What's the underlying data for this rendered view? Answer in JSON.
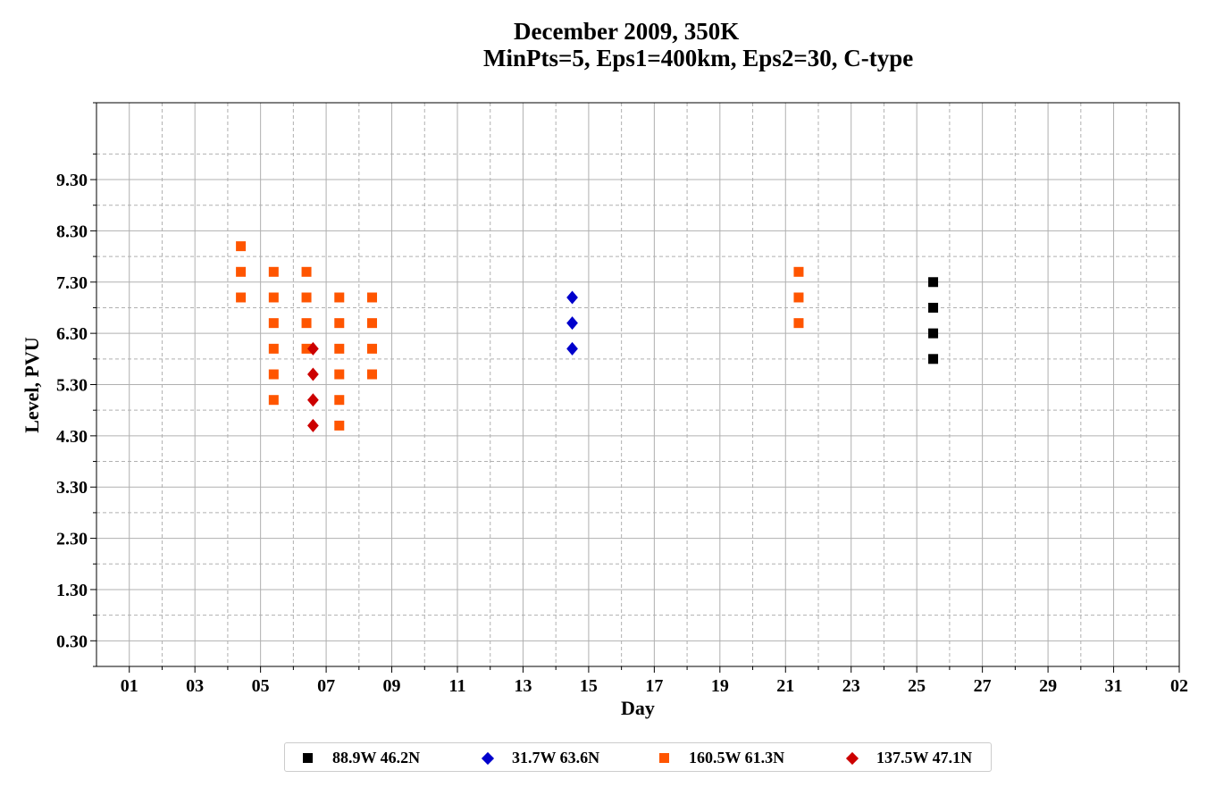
{
  "title": "December 2009, 350K",
  "subtitle": "MinPts=5, Eps1=400km, Eps2=30, C-type",
  "chart_data": {
    "type": "scatter",
    "xlabel": "Day",
    "ylabel": "Level, PVU",
    "x_ticks": [
      "01",
      "03",
      "05",
      "07",
      "09",
      "11",
      "13",
      "15",
      "17",
      "19",
      "21",
      "23",
      "25",
      "27",
      "29",
      "31",
      "02"
    ],
    "y_ticks": [
      "0.30",
      "1.30",
      "2.30",
      "3.30",
      "4.30",
      "5.30",
      "6.30",
      "7.30",
      "8.30",
      "9.30"
    ],
    "xlim": [
      0,
      33
    ],
    "ylim": [
      -0.2,
      10.8
    ],
    "grid": true,
    "legend_position": "bottom",
    "series": [
      {
        "name": "88.9W 46.2N",
        "marker": "square",
        "color": "#000000",
        "points": [
          [
            25.5,
            5.8
          ],
          [
            25.5,
            6.3
          ],
          [
            25.5,
            6.8
          ],
          [
            25.5,
            7.3
          ]
        ]
      },
      {
        "name": "31.7W 63.6N",
        "marker": "diamond",
        "color": "#0000cc",
        "points": [
          [
            14.5,
            6.0
          ],
          [
            14.5,
            6.5
          ],
          [
            14.5,
            7.0
          ]
        ]
      },
      {
        "name": "160.5W 61.3N",
        "marker": "square",
        "color": "#ff5500",
        "points": [
          [
            4.4,
            7.0
          ],
          [
            4.4,
            7.5
          ],
          [
            4.4,
            8.0
          ],
          [
            5.4,
            5.0
          ],
          [
            5.4,
            5.5
          ],
          [
            5.4,
            6.0
          ],
          [
            5.4,
            6.5
          ],
          [
            5.4,
            7.0
          ],
          [
            5.4,
            7.5
          ],
          [
            6.4,
            6.0
          ],
          [
            6.4,
            6.5
          ],
          [
            6.4,
            7.0
          ],
          [
            6.4,
            7.5
          ],
          [
            7.4,
            4.5
          ],
          [
            7.4,
            5.0
          ],
          [
            7.4,
            5.5
          ],
          [
            7.4,
            6.0
          ],
          [
            7.4,
            6.5
          ],
          [
            7.4,
            7.0
          ],
          [
            8.4,
            5.5
          ],
          [
            8.4,
            6.0
          ],
          [
            8.4,
            6.5
          ],
          [
            8.4,
            7.0
          ],
          [
            21.4,
            6.5
          ],
          [
            21.4,
            7.0
          ],
          [
            21.4,
            7.5
          ]
        ]
      },
      {
        "name": "137.5W 47.1N",
        "marker": "diamond",
        "color": "#cc0000",
        "points": [
          [
            6.6,
            4.5
          ],
          [
            6.6,
            5.0
          ],
          [
            6.6,
            5.5
          ],
          [
            6.6,
            6.0
          ]
        ]
      }
    ]
  }
}
